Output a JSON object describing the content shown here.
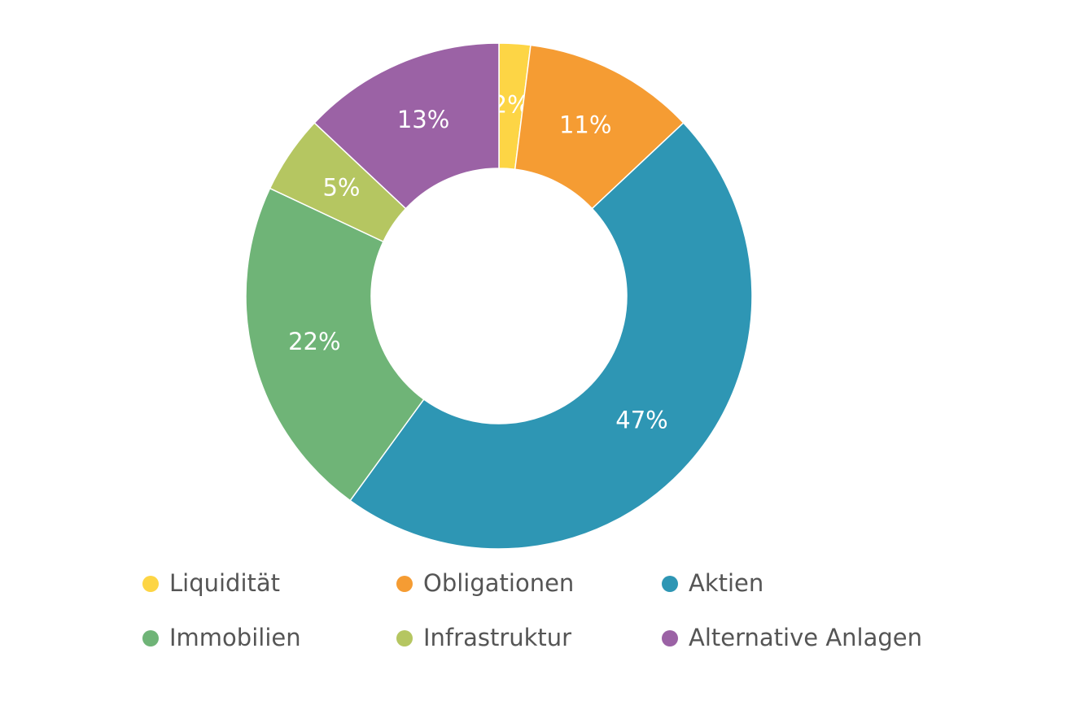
{
  "chart_data": {
    "type": "pie",
    "categories": [
      "Liquidität",
      "Obligationen",
      "Aktien",
      "Immobilien",
      "Infrastruktur",
      "Alternative Anlagen"
    ],
    "values": [
      2,
      11,
      47,
      22,
      5,
      13
    ],
    "value_labels": [
      "2%",
      "11%",
      "47%",
      "22%",
      "5%",
      "13%"
    ],
    "colors": [
      "#fdd545",
      "#f59c33",
      "#2e96b4",
      "#6fb477",
      "#b5c661",
      "#9b62a5"
    ],
    "donut": true
  }
}
